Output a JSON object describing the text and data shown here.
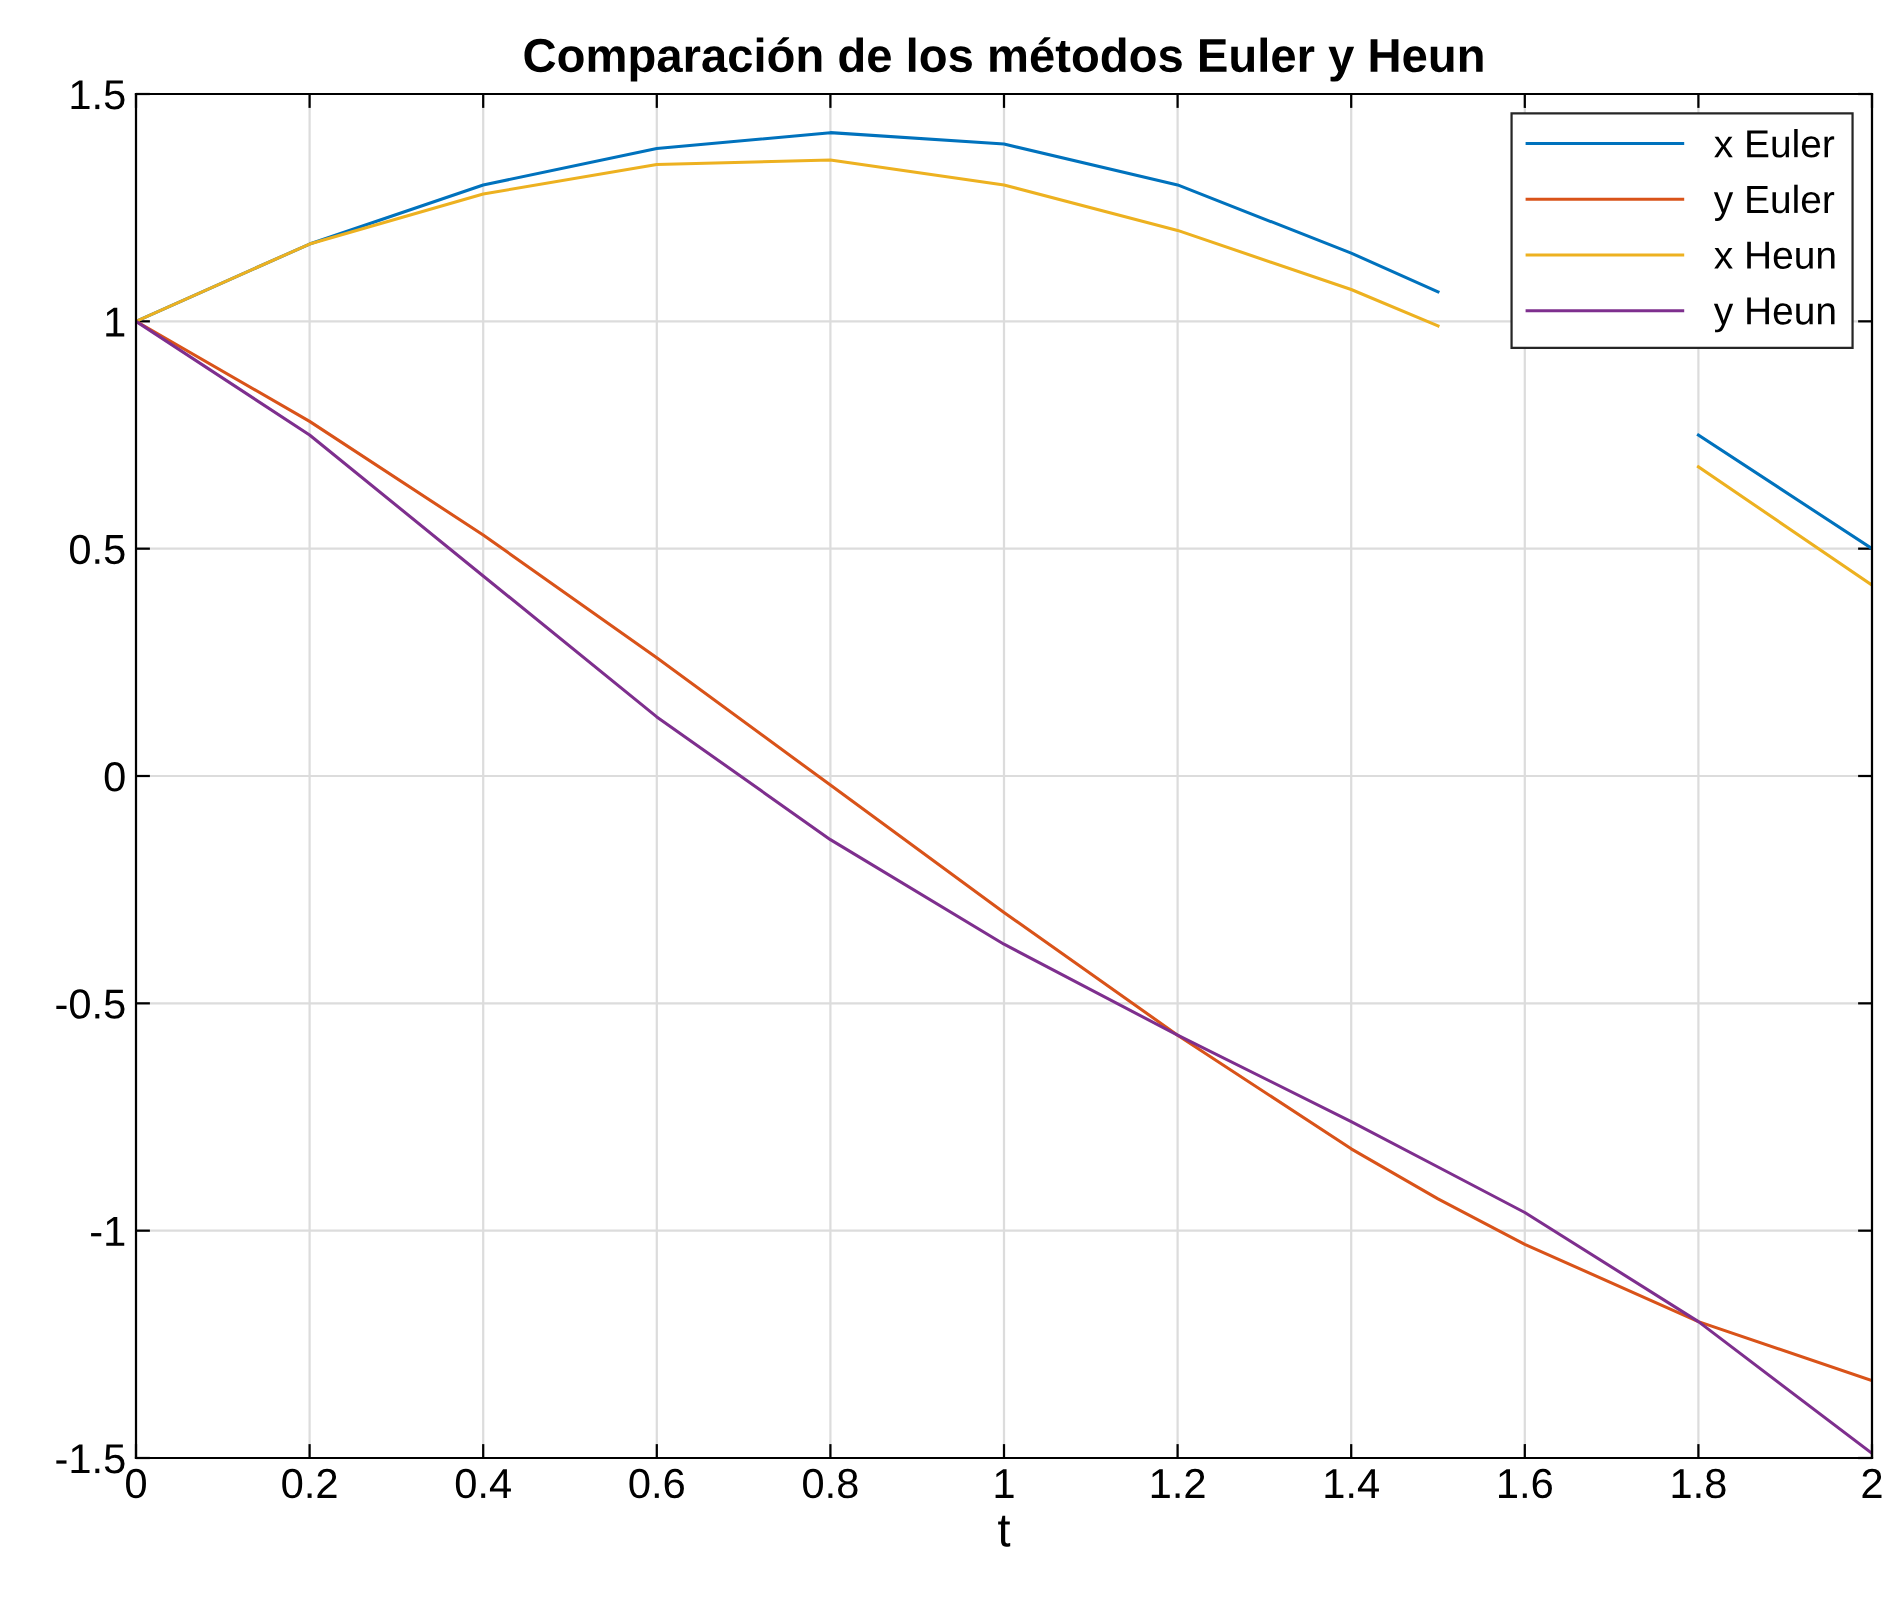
{
  "chart_data": {
    "type": "line",
    "title": "Comparación de los métodos Euler y Heun",
    "xlabel": "t",
    "x": [
      0,
      0.2,
      0.4,
      0.6,
      0.8,
      1.0,
      1.2,
      1.4,
      1.5,
      1.6,
      1.8,
      2.0
    ],
    "series": [
      {
        "name": "x Euler",
        "color": "#0072bd",
        "values": [
          1,
          1.17,
          1.3,
          1.38,
          1.415,
          1.39,
          1.3,
          1.15,
          1.065,
          null,
          0.75,
          0.5
        ]
      },
      {
        "name": "y Euler",
        "color": "#d95319",
        "values": [
          1,
          0.78,
          0.53,
          0.26,
          -0.02,
          -0.3,
          -0.57,
          -0.82,
          -0.93,
          -1.03,
          -1.2,
          -1.33
        ]
      },
      {
        "name": "x Heun",
        "color": "#edb120",
        "values": [
          1,
          1.17,
          1.28,
          1.345,
          1.355,
          1.3,
          1.2,
          1.07,
          0.99,
          null,
          0.68,
          0.42
        ]
      },
      {
        "name": "y Heun",
        "color": "#7e2f8e",
        "values": [
          1,
          0.75,
          0.44,
          0.13,
          -0.14,
          -0.37,
          -0.57,
          -0.76,
          -0.86,
          -0.96,
          -1.2,
          -1.49
        ]
      }
    ],
    "xlim": [
      0,
      2
    ],
    "ylim": [
      -1.5,
      1.5
    ],
    "xticks": [
      0,
      0.2,
      0.4,
      0.6,
      0.8,
      1,
      1.2,
      1.4,
      1.6,
      1.8,
      2
    ],
    "yticks": [
      -1.5,
      -1,
      -0.5,
      0,
      0.5,
      1,
      1.5
    ],
    "grid": true,
    "legend": "top right",
    "marker": "none",
    "line_style": "solid"
  }
}
